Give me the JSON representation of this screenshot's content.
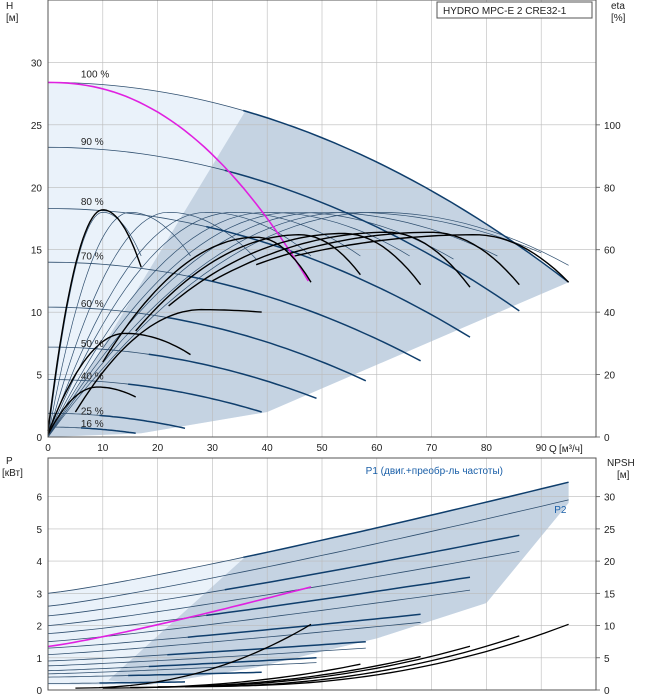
{
  "title": "HYDRO MPC-E 2 CRE32-1",
  "colors": {
    "frame": "#555555",
    "grid": "#bbbbbb",
    "region_dark": "#c5d3e2",
    "region_light": "#eaf2fa",
    "curve_dark": "#0f3e6c",
    "curve_thin": "#2f4f6f",
    "curve_black": "#000000",
    "curve_magenta": "#e020e0",
    "label_blue": "#1a5fa8"
  },
  "chart_data": [
    {
      "type": "line",
      "name": "H-Q",
      "ylabel": "H",
      "yunit": "[м]",
      "y2label": "eta",
      "y2unit": "[%]",
      "xlabel": "Q",
      "xunit": "[м³/ч]",
      "xlim": [
        0,
        100
      ],
      "ylim": [
        0,
        35
      ],
      "y2lim": [
        0,
        140
      ],
      "xticks": [
        0,
        10,
        20,
        30,
        40,
        50,
        60,
        70,
        80,
        90
      ],
      "yticks": [
        0,
        5,
        10,
        15,
        20,
        25,
        30
      ],
      "y2ticks": [
        0,
        20,
        40,
        60,
        80,
        100
      ],
      "grid": true,
      "speed_labels": [
        {
          "text": "100 %",
          "q": 6,
          "h": 28.8
        },
        {
          "text": "90 %",
          "q": 6,
          "h": 23.4
        },
        {
          "text": "80 %",
          "q": 6,
          "h": 18.6
        },
        {
          "text": "70 %",
          "q": 6,
          "h": 14.2
        },
        {
          "text": "60 %",
          "q": 6,
          "h": 10.4
        },
        {
          "text": "50 %",
          "q": 6,
          "h": 7.2
        },
        {
          "text": "40 %",
          "q": 6,
          "h": 4.6
        },
        {
          "text": "25 %",
          "q": 6,
          "h": 1.8
        },
        {
          "text": "16 %",
          "q": 6,
          "h": 0.8
        }
      ],
      "speed_curves": [
        {
          "label": "100 %",
          "h0": 28.4,
          "qmax": 95.0,
          "hend": 12.4
        },
        {
          "label": "90 %",
          "h0": 23.2,
          "qmax": 86.0,
          "hend": 10.1
        },
        {
          "label": "80 %",
          "h0": 18.3,
          "qmax": 77.0,
          "hend": 8.0
        },
        {
          "label": "70 %",
          "h0": 14.0,
          "qmax": 68.0,
          "hend": 6.1
        },
        {
          "label": "60 %",
          "h0": 10.4,
          "qmax": 58.0,
          "hend": 4.5
        },
        {
          "label": "50 %",
          "h0": 7.2,
          "qmax": 49.0,
          "hend": 3.1
        },
        {
          "label": "40 %",
          "h0": 4.6,
          "qmax": 39.0,
          "hend": 2.0
        },
        {
          "label": "25 %",
          "h0": 1.9,
          "qmax": 25.0,
          "hend": 0.7
        },
        {
          "label": "16 %",
          "h0": 0.8,
          "qmax": 16.0,
          "hend": 0.3
        }
      ],
      "magenta_curve": {
        "h0": 28.4,
        "qmax": 47.5,
        "hend": 12.5
      },
      "black_curves": [
        {
          "q0": 0,
          "q1": 17,
          "h0": 0.5,
          "peak": 18.2,
          "qpeak": 10,
          "hend": 13.6
        },
        {
          "q0": 0,
          "q1": 26,
          "h0": 0.3,
          "peak": 8.3,
          "qpeak": 14,
          "hend": 6.6
        },
        {
          "q0": 0,
          "q1": 16,
          "h0": 0.2,
          "peak": 4.0,
          "qpeak": 9,
          "hend": 3.2
        },
        {
          "q0": 5,
          "q1": 39,
          "h0": 2.0,
          "peak": 10.2,
          "qpeak": 28,
          "hend": 10.0
        },
        {
          "q0": 10,
          "q1": 48,
          "h0": 6.0,
          "peak": 16.0,
          "qpeak": 38,
          "hend": 12.4
        },
        {
          "q0": 16,
          "q1": 57,
          "h0": 8.5,
          "peak": 16.2,
          "qpeak": 46,
          "hend": 13.0
        },
        {
          "q0": 22,
          "q1": 68,
          "h0": 10.5,
          "peak": 16.3,
          "qpeak": 54,
          "hend": 12.2
        },
        {
          "q0": 30,
          "q1": 77,
          "h0": 12.5,
          "peak": 16.4,
          "qpeak": 62,
          "hend": 12.0
        },
        {
          "q0": 38,
          "q1": 86,
          "h0": 13.8,
          "peak": 16.4,
          "qpeak": 70,
          "hend": 12.2
        },
        {
          "q0": 45,
          "q1": 95,
          "h0": 14.5,
          "peak": 16.2,
          "qpeak": 78,
          "hend": 12.4
        }
      ],
      "eta_curves": [
        {
          "q1": 17,
          "peak": 72,
          "qpeak": 10,
          "end": 58
        },
        {
          "q1": 26,
          "peak": 72,
          "qpeak": 15,
          "end": 58
        },
        {
          "q1": 38,
          "peak": 72,
          "qpeak": 22,
          "end": 57
        },
        {
          "q1": 48,
          "peak": 72,
          "qpeak": 29,
          "end": 58
        },
        {
          "q1": 57,
          "peak": 72,
          "qpeak": 34,
          "end": 58
        },
        {
          "q1": 66,
          "peak": 72,
          "qpeak": 40,
          "end": 58
        },
        {
          "q1": 74,
          "peak": 72,
          "qpeak": 45,
          "end": 57
        },
        {
          "q1": 82,
          "peak": 72,
          "qpeak": 50,
          "end": 58
        },
        {
          "q1": 90,
          "peak": 72,
          "qpeak": 55,
          "end": 59
        },
        {
          "q1": 95,
          "peak": 72,
          "qpeak": 60,
          "end": 55
        }
      ]
    },
    {
      "type": "line",
      "name": "P-Q",
      "ylabel": "P",
      "yunit": "[кВт]",
      "y2label": "NPSH",
      "y2unit": "[м]",
      "xlim": [
        0,
        100
      ],
      "ylim": [
        0,
        7.2
      ],
      "y2lim": [
        0,
        36
      ],
      "yticks": [
        0,
        1,
        2,
        3,
        4,
        5,
        6
      ],
      "y2ticks": [
        0,
        5,
        10,
        15,
        20,
        25,
        30
      ],
      "grid": true,
      "series_labels": [
        {
          "text": "P1 (двиг.+преобр-ль частоты)",
          "q": 70.5,
          "p": 6.7
        },
        {
          "text": "P2",
          "q": 93.5,
          "p": 5.5
        }
      ],
      "p1_curves": [
        {
          "q1": 95,
          "p0": 3.0,
          "p1": 6.45
        },
        {
          "q1": 86,
          "p0": 2.3,
          "p1": 4.8
        },
        {
          "q1": 77,
          "p0": 1.75,
          "p1": 3.5
        },
        {
          "q1": 68,
          "p0": 1.3,
          "p1": 2.35
        },
        {
          "q1": 58,
          "p0": 0.9,
          "p1": 1.5
        },
        {
          "q1": 49,
          "p0": 0.6,
          "p1": 1.0
        },
        {
          "q1": 39,
          "p0": 0.4,
          "p1": 0.55
        },
        {
          "q1": 25,
          "p0": 0.2,
          "p1": 0.25
        }
      ],
      "p2_curves": [
        {
          "q1": 95,
          "p0": 2.6,
          "p1": 5.9
        },
        {
          "q1": 86,
          "p0": 2.0,
          "p1": 4.3
        },
        {
          "q1": 77,
          "p0": 1.5,
          "p1": 3.1
        },
        {
          "q1": 68,
          "p0": 1.1,
          "p1": 2.1
        },
        {
          "q1": 58,
          "p0": 0.75,
          "p1": 1.3
        },
        {
          "q1": 49,
          "p0": 0.5,
          "p1": 0.85
        }
      ],
      "magenta_curve": {
        "q1": 48,
        "p0": 1.35,
        "p1": 3.2
      },
      "npsh_curves": [
        {
          "q0": 5,
          "q1": 48,
          "n0": 0.3,
          "n1": 10.2
        },
        {
          "q0": 10,
          "q1": 57,
          "n0": 0.3,
          "n1": 4.0
        },
        {
          "q0": 15,
          "q1": 68,
          "n0": 0.4,
          "n1": 5.2
        },
        {
          "q0": 20,
          "q1": 77,
          "n0": 0.5,
          "n1": 6.8
        },
        {
          "q0": 25,
          "q1": 86,
          "n0": 0.5,
          "n1": 8.4
        },
        {
          "q0": 30,
          "q1": 95,
          "n0": 0.6,
          "n1": 10.2
        }
      ]
    }
  ]
}
